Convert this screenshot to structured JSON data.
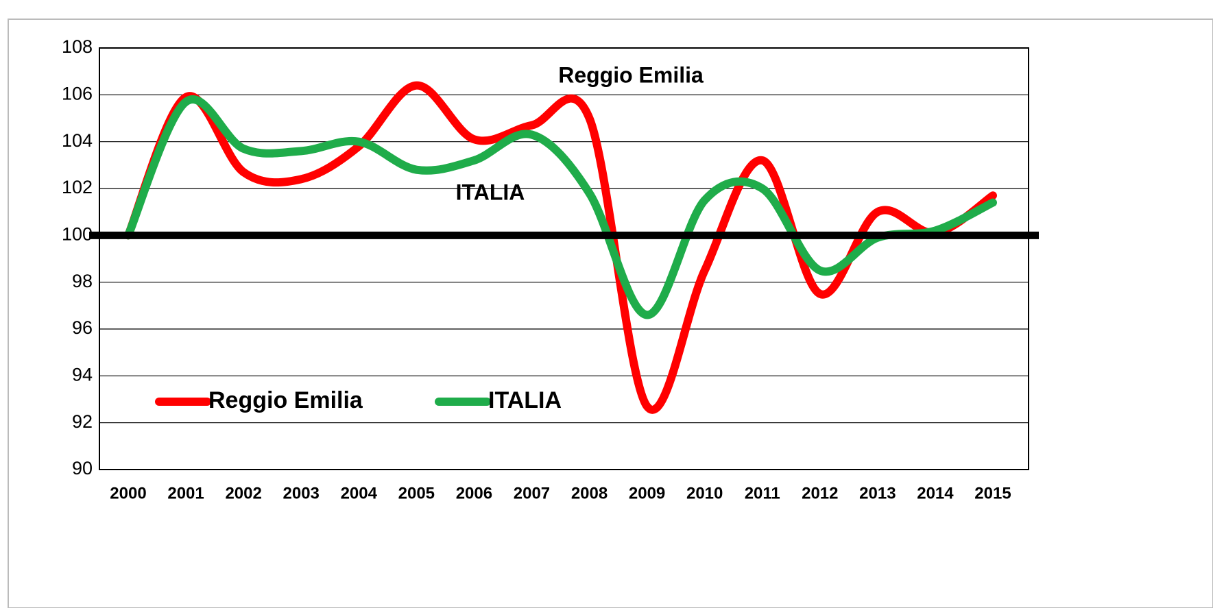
{
  "chart_data": {
    "type": "line",
    "categories": [
      "2000",
      "2001",
      "2002",
      "2003",
      "2004",
      "2005",
      "2006",
      "2007",
      "2008",
      "2009",
      "2010",
      "2011",
      "2012",
      "2013",
      "2014",
      "2015"
    ],
    "series": [
      {
        "name": "Reggio Emilia",
        "color": "#ff0000",
        "values": [
          100,
          105.9,
          102.7,
          102.4,
          103.8,
          106.4,
          104.1,
          104.7,
          105,
          92.7,
          98.5,
          103.2,
          97.5,
          101,
          100.1,
          101.7
        ]
      },
      {
        "name": "ITALIA",
        "color": "#1fac4a",
        "values": [
          100,
          105.7,
          103.7,
          103.6,
          104,
          102.8,
          103.2,
          104.3,
          101.8,
          96.6,
          101.5,
          102,
          98.5,
          99.9,
          100.2,
          101.4
        ]
      }
    ],
    "annotations": [
      "Reggio Emilia",
      "ITALIA"
    ],
    "reference_line": 100,
    "ylim": [
      90,
      108
    ],
    "yticks": [
      90,
      92,
      94,
      96,
      98,
      100,
      102,
      104,
      106,
      108
    ],
    "grid": true,
    "legend": "lower left"
  }
}
